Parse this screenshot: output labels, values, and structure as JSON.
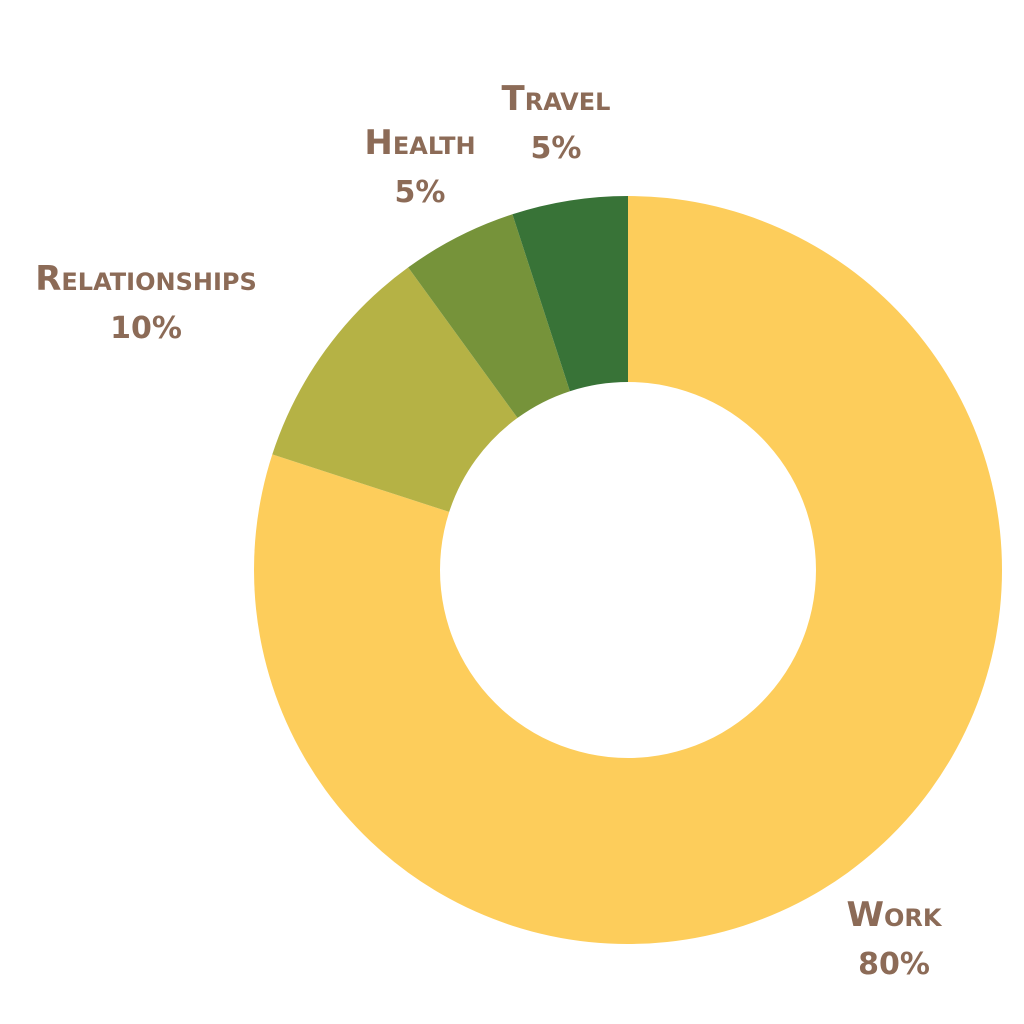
{
  "chart_data": {
    "type": "pie",
    "variant": "donut",
    "title": "",
    "slices": [
      {
        "label": "Work",
        "value": 80,
        "display": "80%",
        "color": "#FDCD5B"
      },
      {
        "label": "Relationships",
        "value": 10,
        "display": "10%",
        "color": "#B5B245"
      },
      {
        "label": "Health",
        "value": 5,
        "display": "5%",
        "color": "#76933A"
      },
      {
        "label": "Travel",
        "value": 5,
        "display": "5%",
        "color": "#387337"
      }
    ],
    "label_color": "#8C6B57",
    "legend": "none"
  }
}
